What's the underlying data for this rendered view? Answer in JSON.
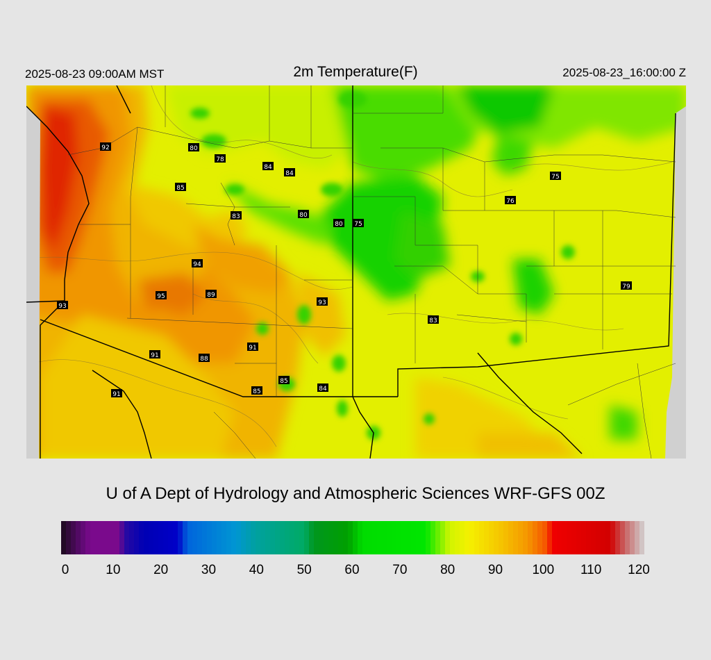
{
  "header": {
    "local_time": "2025-08-23 09:00AM MST",
    "title": "2m Temperature(F)",
    "utc_time": "2025-08-23_16:00:00 Z"
  },
  "credit": "U of A Dept of Hydrology and Atmospheric Sciences WRF-GFS 00Z",
  "map": {
    "region": "Southwestern United States",
    "station_labels": [
      "92",
      "80",
      "78",
      "84",
      "84",
      "85",
      "83",
      "80",
      "80",
      "75",
      "75",
      "76",
      "94",
      "95",
      "89",
      "93",
      "83",
      "79",
      "93",
      "91",
      "91",
      "88",
      "85",
      "85",
      "84",
      "91"
    ]
  },
  "colorbar": {
    "ticks": [
      "0",
      "10",
      "20",
      "30",
      "40",
      "50",
      "60",
      "70",
      "80",
      "90",
      "100",
      "110",
      "120"
    ],
    "min": 0,
    "max": 120,
    "colors": [
      {
        "v": 0,
        "c": "#1a0a1a"
      },
      {
        "v": 4,
        "c": "#5a0a6e"
      },
      {
        "v": 6,
        "c": "#7a0a8c"
      },
      {
        "v": 12,
        "c": "#7a0a8c"
      },
      {
        "v": 13,
        "c": "#2a0aa0"
      },
      {
        "v": 17,
        "c": "#0000b4"
      },
      {
        "v": 24,
        "c": "#0000c8"
      },
      {
        "v": 26,
        "c": "#0064dc"
      },
      {
        "v": 36,
        "c": "#0096d2"
      },
      {
        "v": 40,
        "c": "#00a0a0"
      },
      {
        "v": 50,
        "c": "#00aa64"
      },
      {
        "v": 52,
        "c": "#00961e"
      },
      {
        "v": 59,
        "c": "#00a000"
      },
      {
        "v": 62,
        "c": "#00dc00"
      },
      {
        "v": 75,
        "c": "#00e600"
      },
      {
        "v": 80,
        "c": "#d2f500"
      },
      {
        "v": 84,
        "c": "#f5f000"
      },
      {
        "v": 90,
        "c": "#f5c800"
      },
      {
        "v": 96,
        "c": "#f59600"
      },
      {
        "v": 100,
        "c": "#f55000"
      },
      {
        "v": 101,
        "c": "#f00000"
      },
      {
        "v": 113,
        "c": "#d20000"
      },
      {
        "v": 116,
        "c": "#c86464"
      },
      {
        "v": 120,
        "c": "#d2d2d2"
      }
    ]
  }
}
